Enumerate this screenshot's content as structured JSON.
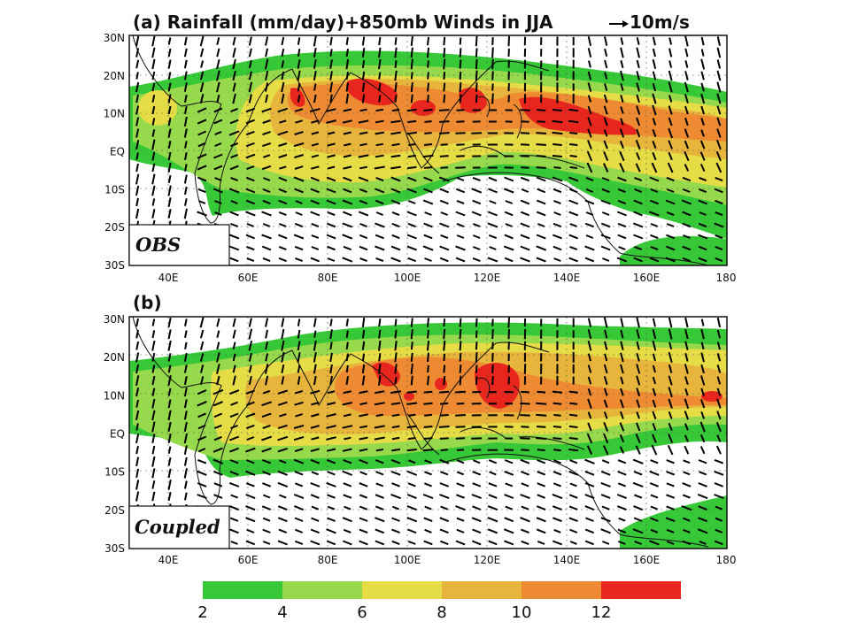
{
  "title": "(a) Rainfall (mm/day)+850mb Winds in JJA",
  "ref_vector_label": "10m/s",
  "panels": [
    {
      "id": "a",
      "tag": "",
      "label": "OBS"
    },
    {
      "id": "b",
      "tag": "(b)",
      "label": "Coupled"
    }
  ],
  "axes": {
    "lat_labels": [
      "30N",
      "20N",
      "10N",
      "EQ",
      "10S",
      "20S",
      "30S"
    ],
    "lon_labels": [
      "40E",
      "60E",
      "80E",
      "100E",
      "120E",
      "140E",
      "160E",
      "180"
    ]
  },
  "colorbar": {
    "labels": [
      "2",
      "4",
      "6",
      "8",
      "10",
      "12"
    ],
    "colors": [
      "#37c837",
      "#97d94c",
      "#e6dc46",
      "#e8b53c",
      "#ee8a32",
      "#e8261e"
    ]
  },
  "colors": {
    "ocean_dry": "#ffffff",
    "frame": "#111111"
  }
}
